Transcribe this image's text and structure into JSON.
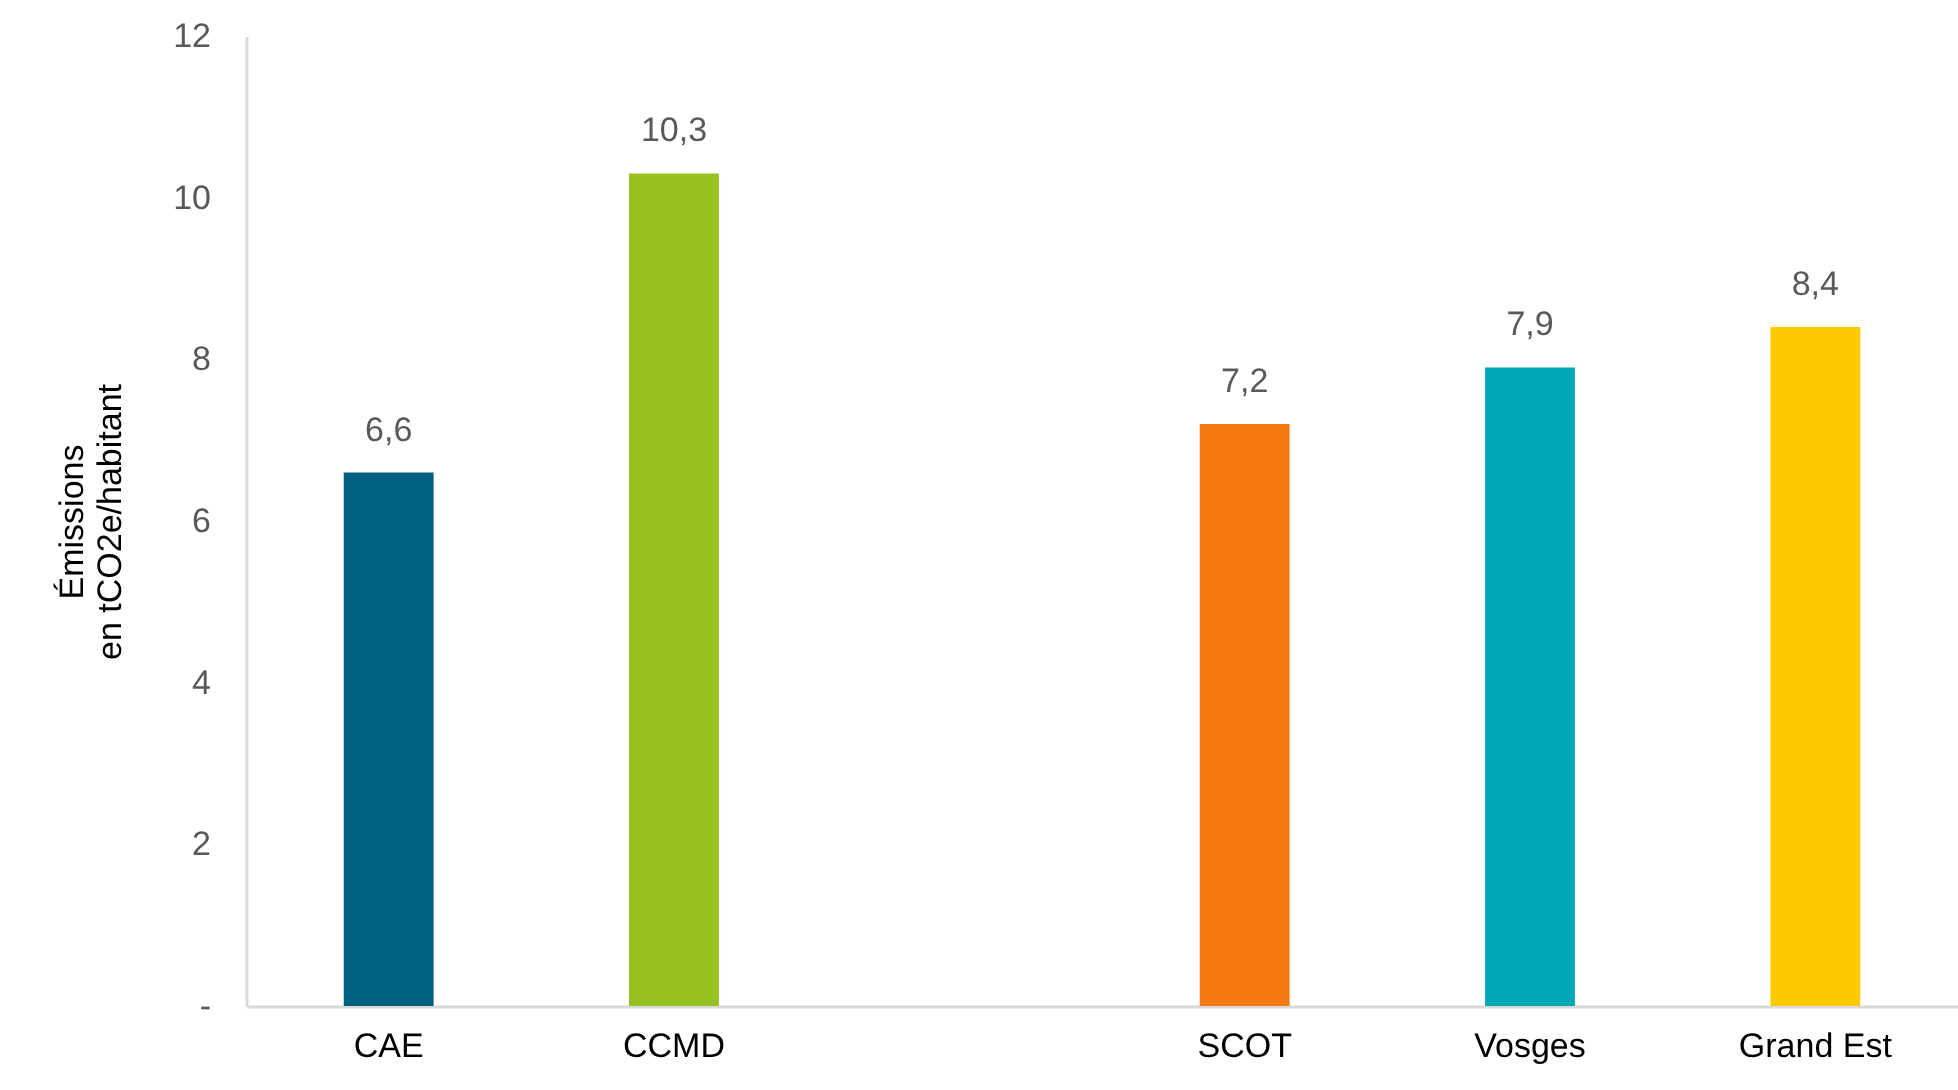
{
  "chart_data": {
    "type": "bar",
    "ylabel": "Émissions\nen tCO2e/habitant",
    "categories": [
      "CAE",
      "CCMD",
      null,
      "SCOT",
      "Vosges",
      "Grand Est"
    ],
    "values": [
      6.6,
      10.3,
      null,
      7.2,
      7.9,
      8.4
    ],
    "colors": [
      "#00607f",
      "#96c11f",
      null,
      "#f47a0f",
      "#00a8b7",
      "#fdc900"
    ],
    "value_labels": [
      "6,6",
      "10,3",
      null,
      "7,2",
      "7,9",
      "8,4"
    ],
    "ylim": [
      0,
      12
    ],
    "yticks": [
      {
        "value": 0,
        "label": "-"
      },
      2,
      4,
      6,
      8,
      10,
      12
    ]
  }
}
